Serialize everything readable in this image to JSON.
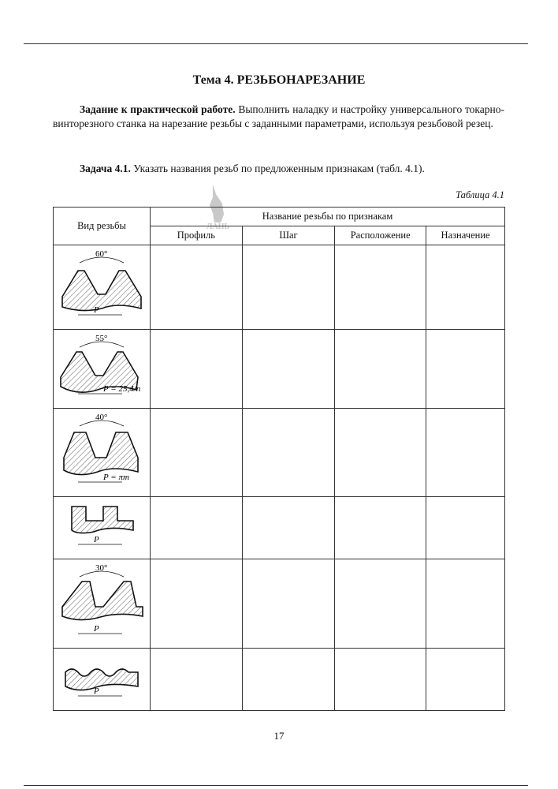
{
  "title": "Тема 4. РЕЗЬБОНАРЕЗАНИЕ",
  "task": {
    "bold": "Задание к практической работе.",
    "text": " Выполнить наладку и настройку универсального токарно-винторезного станка на нарезание резьбы с заданными параметрами, используя резьбовой резец."
  },
  "subtask": {
    "bold": "Задача 4.1.",
    "text": " Указать названия резьб по предложенным признакам (табл. 4.1)."
  },
  "table_caption": "Таблица 4.1",
  "watermark": "ЛАНЬ",
  "table": {
    "header_kind": "Вид резьбы",
    "header_group": "Название резьбы по признакам",
    "columns": [
      "Профиль",
      "Шаг",
      "Расположение",
      "Назначение"
    ],
    "rows": [
      {
        "angle": "60°",
        "pitch": "P"
      },
      {
        "angle": "55°",
        "pitch": "P = 25,4/n"
      },
      {
        "angle": "40°",
        "pitch": "P = πm"
      },
      {
        "angle": "",
        "pitch": "P"
      },
      {
        "angle": "30°",
        "pitch": "P"
      },
      {
        "angle": "",
        "pitch": "P"
      }
    ]
  },
  "page_number": "17"
}
